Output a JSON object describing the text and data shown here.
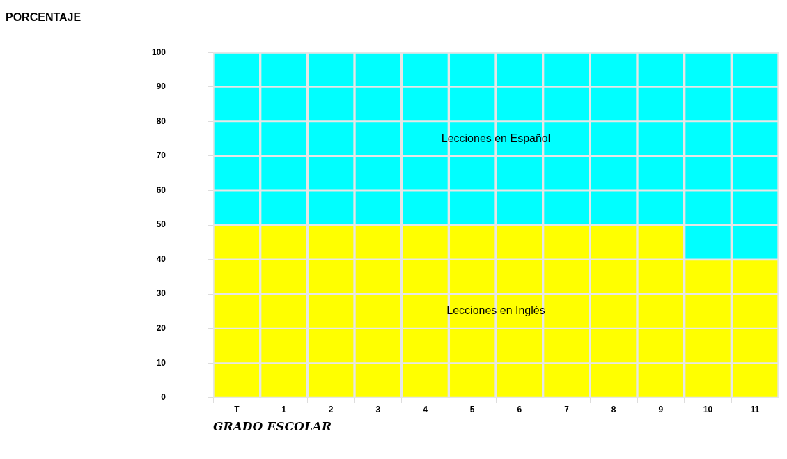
{
  "chart_data": {
    "type": "bar",
    "stacked": true,
    "annotations": [
      "PORCENTAJE"
    ],
    "xlabel": "GRADO ESCOLAR",
    "categories": [
      "T",
      "1",
      "2",
      "3",
      "4",
      "5",
      "6",
      "7",
      "8",
      "9",
      "10",
      "11"
    ],
    "series": [
      {
        "name": "Lecciones en Inglés",
        "color": "#ffff00",
        "values": [
          50,
          50,
          50,
          50,
          50,
          50,
          50,
          50,
          50,
          50,
          40,
          40
        ]
      },
      {
        "name": "Lecciones en Español",
        "color": "#00ffff",
        "values": [
          50,
          50,
          50,
          50,
          50,
          50,
          50,
          50,
          50,
          50,
          60,
          60
        ]
      }
    ],
    "ylim": [
      0,
      100
    ],
    "yticks": [
      0,
      10,
      20,
      30,
      40,
      50,
      60,
      70,
      80,
      90,
      100
    ],
    "grid": true,
    "legend": false
  }
}
